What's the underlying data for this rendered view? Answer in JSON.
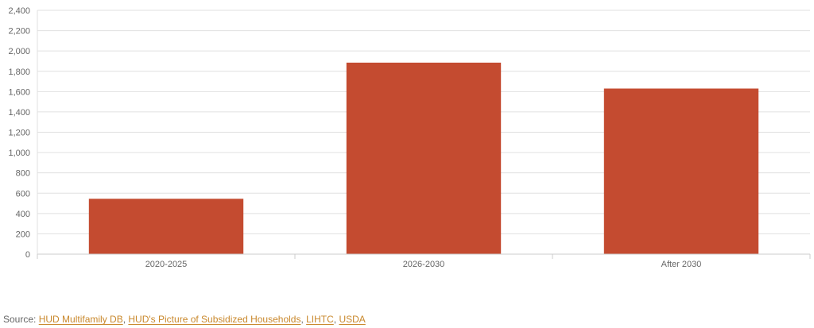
{
  "chart_data": {
    "type": "bar",
    "categories": [
      "2020-2025",
      "2026-2030",
      "After 2030"
    ],
    "values": [
      545,
      1885,
      1630
    ],
    "ylim": [
      0,
      2400
    ],
    "yticks": [
      0,
      200,
      400,
      600,
      800,
      1000,
      1200,
      1400,
      1600,
      1800,
      2000,
      2200,
      2400
    ],
    "ytick_labels": [
      "0",
      "200",
      "400",
      "600",
      "800",
      "1,000",
      "1,200",
      "1,400",
      "1,600",
      "1,800",
      "2,000",
      "2,200",
      "2,400"
    ],
    "grid": true,
    "bar_color": "#c44b30",
    "grid_color": "#e0e0e0"
  },
  "source": {
    "prefix": "Source: ",
    "links": [
      {
        "label": "HUD Multifamily DB"
      },
      {
        "label": "HUD's Picture of Subsidized Households"
      },
      {
        "label": "LIHTC"
      },
      {
        "label": "USDA"
      }
    ],
    "separator": ", "
  }
}
